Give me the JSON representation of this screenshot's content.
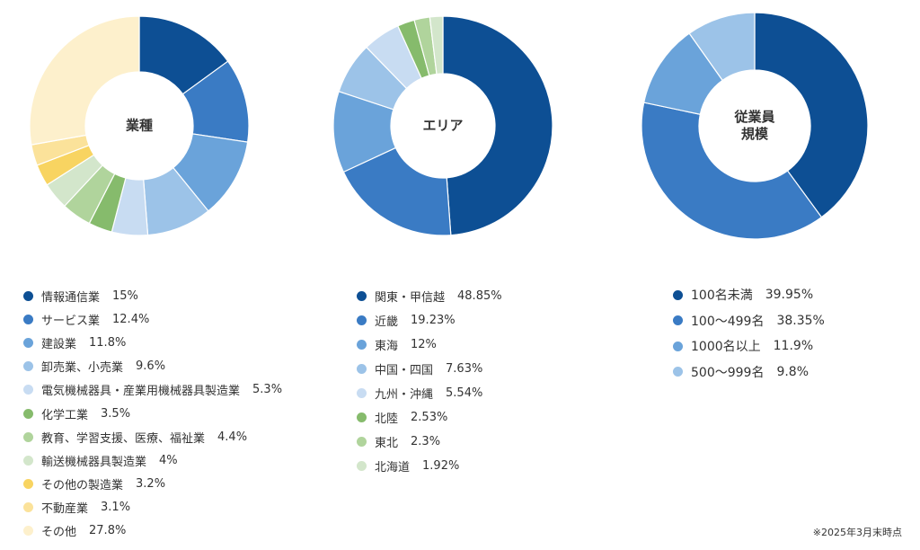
{
  "chart_data": [
    {
      "type": "pie",
      "title": "業種",
      "categories": [
        "情報通信業",
        "サービス業",
        "建設業",
        "卸売業、小売業",
        "電気機械器具・産業用機械器具製造業",
        "化学工業",
        "教育、学習支援、医療、福祉業",
        "輸送機械器具製造業",
        "その他の製造業",
        "不動産業",
        "その他"
      ],
      "values": [
        15,
        12.4,
        11.8,
        9.6,
        5.3,
        3.5,
        4.4,
        4,
        3.2,
        3.1,
        27.8
      ],
      "labels": [
        "15%",
        "12.4%",
        "11.8%",
        "9.6%",
        "5.3%",
        "3.5%",
        "4.4%",
        "4%",
        "3.2%",
        "3.1%",
        "27.8%"
      ],
      "colors": [
        "#0d4f94",
        "#3a7bc4",
        "#6aa3da",
        "#9cc3e8",
        "#c8dcf2",
        "#86bb6c",
        "#b0d49c",
        "#d3e6cb",
        "#f8d461",
        "#fbe29a",
        "#fdf0cc"
      ],
      "legend": "bottom"
    },
    {
      "type": "pie",
      "title": "エリア",
      "categories": [
        "関東・甲信越",
        "近畿",
        "東海",
        "中国・四国",
        "九州・沖縄",
        "北陸",
        "東北",
        "北海道"
      ],
      "values": [
        48.85,
        19.23,
        12,
        7.63,
        5.54,
        2.53,
        2.3,
        1.92
      ],
      "labels": [
        "48.85%",
        "19.23%",
        "12%",
        "7.63%",
        "5.54%",
        "2.53%",
        "2.3%",
        "1.92%"
      ],
      "colors": [
        "#0d4f94",
        "#3a7bc4",
        "#6aa3da",
        "#9cc3e8",
        "#c8dcf2",
        "#86bb6c",
        "#b0d49c",
        "#d3e6cb"
      ],
      "legend": "bottom"
    },
    {
      "type": "pie",
      "title": "従業員規模",
      "title_lines": [
        "従業員",
        "規模"
      ],
      "categories": [
        "100名未満",
        "100～499名",
        "1000名以上",
        "500～999名"
      ],
      "values": [
        39.95,
        38.35,
        11.9,
        9.8
      ],
      "labels": [
        "39.95%",
        "38.35%",
        "11.9%",
        "9.8%"
      ],
      "colors": [
        "#0d4f94",
        "#3a7bc4",
        "#6aa3da",
        "#9cc3e8"
      ],
      "legend": "bottom"
    }
  ],
  "footnote": "※2025年3月末時点"
}
